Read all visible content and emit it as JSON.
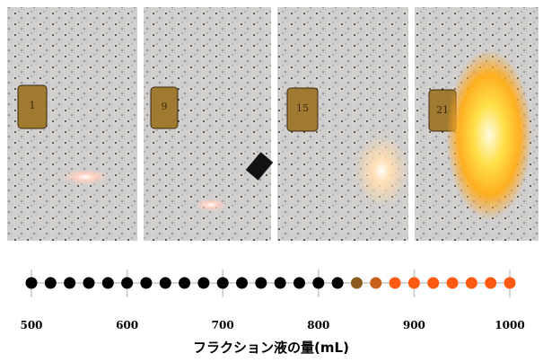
{
  "photos": [
    {
      "tag": "1"
    },
    {
      "tag": "9"
    },
    {
      "tag": "15"
    },
    {
      "tag": "21"
    }
  ],
  "chart_data": {
    "type": "dot",
    "x": [
      500,
      520,
      540,
      560,
      580,
      600,
      620,
      640,
      660,
      680,
      700,
      720,
      740,
      760,
      780,
      800,
      820,
      840,
      860,
      880,
      900,
      920,
      940,
      960,
      980,
      1000
    ],
    "colors": [
      "#000000",
      "#000000",
      "#000000",
      "#000000",
      "#000000",
      "#000000",
      "#000000",
      "#000000",
      "#000000",
      "#000000",
      "#000000",
      "#000000",
      "#000000",
      "#000000",
      "#000000",
      "#000000",
      "#000000",
      "#8b5a1e",
      "#c9611c",
      "#ff5a12",
      "#ff5a12",
      "#ff5a12",
      "#ff5a12",
      "#ff5a12",
      "#ff5a12",
      "#ff5a12"
    ],
    "xlim": [
      500,
      1000
    ],
    "xticks": [
      500,
      600,
      700,
      800,
      900,
      1000
    ],
    "grid": true,
    "xlabel": "フラクション液の量(mL)"
  }
}
